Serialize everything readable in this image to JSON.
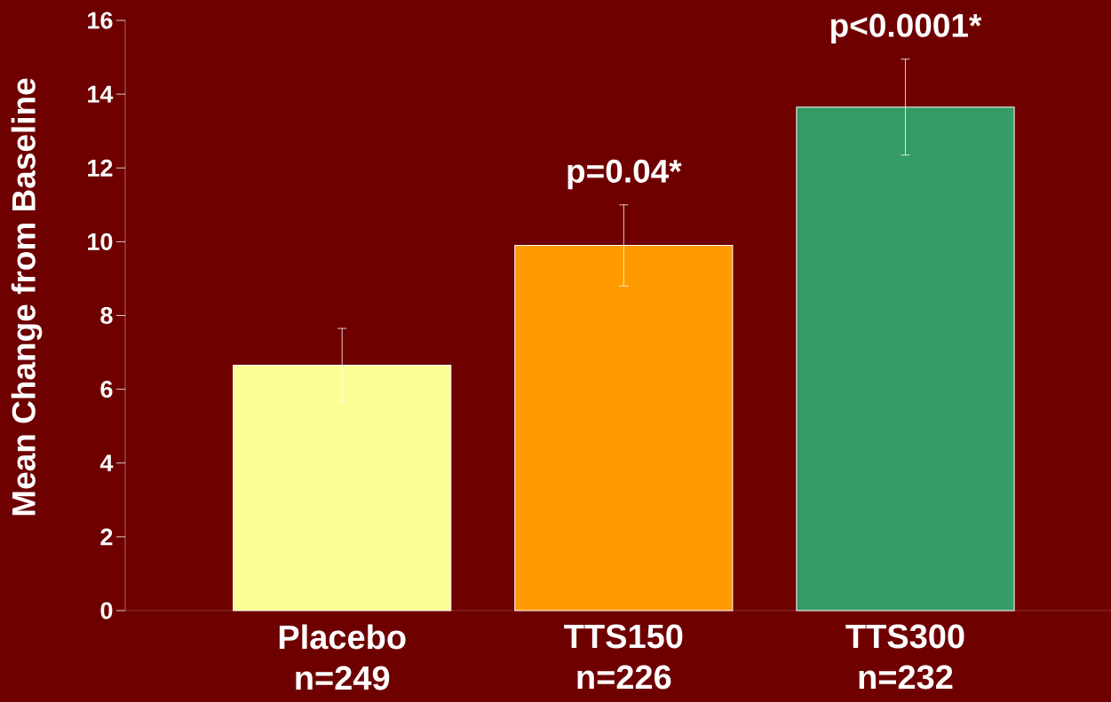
{
  "chart_data": {
    "type": "bar",
    "ylabel": "Mean Change from Baseline",
    "categories": [
      "Placebo n=249",
      "TTS150 n=226",
      "TTS300 n=232"
    ],
    "values": [
      6.65,
      9.9,
      13.65
    ],
    "errors": [
      1.0,
      1.1,
      1.3
    ],
    "colors": [
      "#fdfd96",
      "#ff9a00",
      "#359b67"
    ],
    "ylim": [
      0,
      16
    ],
    "yticks": [
      0,
      2,
      4,
      6,
      8,
      10,
      12,
      14,
      16
    ],
    "annotations": [
      "p=0.04*",
      "p<0.0001*"
    ],
    "grid": false
  }
}
